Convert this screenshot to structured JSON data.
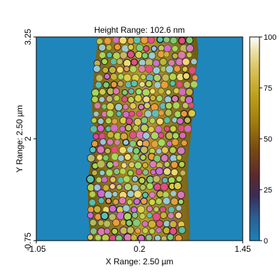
{
  "chart_data": {
    "type": "heatmap",
    "title": "Height Range:  102.6 nm",
    "xlabel": "X Range:  2.50 µm",
    "ylabel": "Y Range:  2.50 µm",
    "x_ticks": [
      {
        "value": -1.05,
        "label": "-1.05"
      },
      {
        "value": 0.2,
        "label": "0.2"
      },
      {
        "value": 1.45,
        "label": "1.45"
      }
    ],
    "y_ticks": [
      {
        "value": 0.75,
        "label": "0.75"
      },
      {
        "value": 2,
        "label": "2"
      },
      {
        "value": 3.25,
        "label": "3.25"
      }
    ],
    "xlim": [
      -1.05,
      1.45
    ],
    "ylim": [
      0.75,
      3.25
    ],
    "colorbar": {
      "range": [
        0,
        100
      ],
      "ticks": [
        {
          "value": 0,
          "label": "0"
        },
        {
          "value": 25,
          "label": "25"
        },
        {
          "value": 50,
          "label": "50"
        },
        {
          "value": 75,
          "label": "75"
        },
        {
          "value": 100,
          "label": "100"
        }
      ],
      "stops": [
        {
          "value": 0,
          "color": "#1c82b8"
        },
        {
          "value": 12,
          "color": "#2c5c8e"
        },
        {
          "value": 22,
          "color": "#3a2c55"
        },
        {
          "value": 32,
          "color": "#5b2a2e"
        },
        {
          "value": 45,
          "color": "#7a4a12"
        },
        {
          "value": 58,
          "color": "#a07c0c"
        },
        {
          "value": 72,
          "color": "#bfa21e"
        },
        {
          "value": 84,
          "color": "#d9c25c"
        },
        {
          "value": 93,
          "color": "#ece0a6"
        },
        {
          "value": 100,
          "color": "#ffffff"
        }
      ]
    },
    "background_color": "#1f86bc",
    "grid": false
  }
}
